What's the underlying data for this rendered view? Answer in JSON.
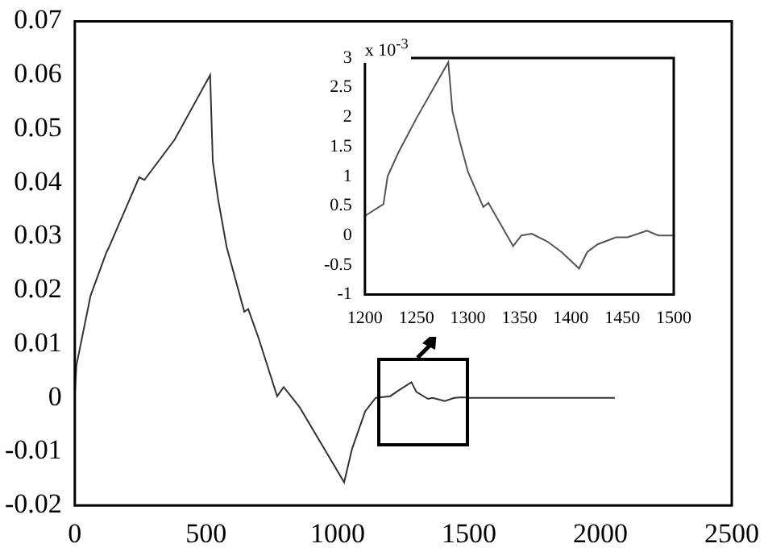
{
  "chart_data": [
    {
      "type": "line",
      "color": "#333333",
      "xlim": [
        0,
        2500
      ],
      "ylim": [
        -0.02,
        0.07
      ],
      "xticks": [
        0,
        500,
        1000,
        1500,
        2000,
        2500
      ],
      "yticks": [
        -0.02,
        -0.01,
        0,
        0.01,
        0.02,
        0.03,
        0.04,
        0.05,
        0.06,
        0.07
      ],
      "x": [
        0,
        6,
        60,
        120,
        130,
        245,
        265,
        380,
        515,
        525,
        545,
        578,
        645,
        660,
        700,
        770,
        795,
        855,
        1025,
        1055,
        1105,
        1145,
        1200,
        1233,
        1281,
        1300,
        1344,
        1362,
        1408,
        1444,
        1474,
        1500,
        2055
      ],
      "values": [
        0.0005,
        0.006,
        0.019,
        0.027,
        0.028,
        0.041,
        0.0405,
        0.048,
        0.06,
        0.044,
        0.037,
        0.028,
        0.016,
        0.0165,
        0.011,
        0.0003,
        0.002,
        -0.0017,
        -0.0157,
        -0.0095,
        -0.0025,
        0,
        0.0003,
        0.0014,
        0.0029,
        0.0011,
        -0.0002,
        0,
        -0.0006,
        0,
        0.0001,
        0,
        0
      ]
    },
    {
      "type": "line",
      "color": "#555555",
      "xlim": [
        1200,
        1500
      ],
      "ylim": [
        -1,
        3
      ],
      "xticks": [
        1200,
        1250,
        1300,
        1350,
        1400,
        1450,
        1500
      ],
      "yticks": [
        -1,
        -0.5,
        0,
        0.5,
        1,
        1.5,
        2,
        2.5,
        3
      ],
      "annotations": [
        "x 10$^{-3}$"
      ],
      "x": [
        1200,
        1218,
        1222,
        1233,
        1250,
        1281,
        1285,
        1292,
        1300,
        1315,
        1320,
        1344,
        1352,
        1362,
        1377,
        1391,
        1408,
        1416,
        1426,
        1444,
        1455,
        1474,
        1485,
        1500
      ],
      "values": [
        0.33,
        0.53,
        1.0,
        1.42,
        1.98,
        2.93,
        2.1,
        1.6,
        1.08,
        0.48,
        0.55,
        -0.18,
        0,
        0.03,
        -0.1,
        -0.28,
        -0.56,
        -0.28,
        -0.15,
        -0.03,
        -0.03,
        0.08,
        0,
        0
      ]
    }
  ]
}
